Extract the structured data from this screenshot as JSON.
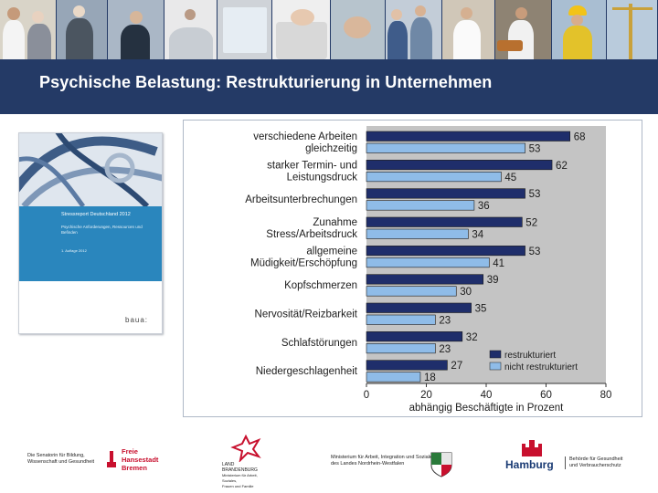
{
  "slide": {
    "title": "Psychische Belastung: Restrukturierung in Unternehmen"
  },
  "photos": [
    "care-photo",
    "call-center-photo",
    "keyboard-photo",
    "meeting-photo",
    "baker-photo",
    "construction-worker-photo"
  ],
  "booklet": {
    "series": "Stressreport Deutschland 2012",
    "subtitle": "Psychische Anforderungen, Ressourcen und Befinden",
    "edition": "1. Auflage 2012",
    "logo": "baua:"
  },
  "chart_data": {
    "type": "bar",
    "orientation": "horizontal",
    "categories": [
      [
        "verschiedene Arbeiten",
        "gleichzeitig"
      ],
      [
        "starker Termin- und",
        "Leistungsdruck"
      ],
      [
        "Arbeitsunterbrechungen"
      ],
      [
        "Zunahme",
        "Stress/Arbeitsdruck"
      ],
      [
        "allgemeine",
        "Müdigkeit/Erschöpfung"
      ],
      [
        "Kopfschmerzen"
      ],
      [
        "Nervosität/Reizbarkeit"
      ],
      [
        "Schlafstörungen"
      ],
      [
        "Niedergeschlagenheit"
      ]
    ],
    "series": [
      {
        "name": "restrukturiert",
        "color": "#1f2e6b",
        "values": [
          68,
          62,
          53,
          52,
          53,
          39,
          35,
          32,
          27
        ]
      },
      {
        "name": "nicht restrukturiert",
        "color": "#8fbce8",
        "values": [
          53,
          45,
          36,
          34,
          41,
          30,
          23,
          23,
          18
        ]
      }
    ],
    "xlabel": "abhängig Beschäftigte in Prozent",
    "xlim": [
      0,
      80
    ],
    "xticks": [
      0,
      20,
      40,
      60,
      80
    ],
    "background": "#c4c4c4",
    "legend": "bottom-right"
  },
  "footer": {
    "berlin": {
      "line1": "Die Senatorin für Bildung,",
      "line2": "Wissenschaft und Gesundheit"
    },
    "bremen": {
      "line1": "Freie",
      "line2": "Hansestadt",
      "line3": "Bremen"
    },
    "brandenburg": {
      "line1": "LAND",
      "line2": "BRANDENBURG",
      "line3": "Ministerium für Arbeit, Soziales,",
      "line4": "Frauen und Familie"
    },
    "nrw": {
      "line1": "Ministerium für Arbeit, Integration und Soziales",
      "line2": "des Landes Nordrhein-Westfalen"
    },
    "hamburg": {
      "word": "Hamburg",
      "line1": "Behörde für Gesundheit",
      "line2": "und Verbraucherschutz"
    }
  }
}
